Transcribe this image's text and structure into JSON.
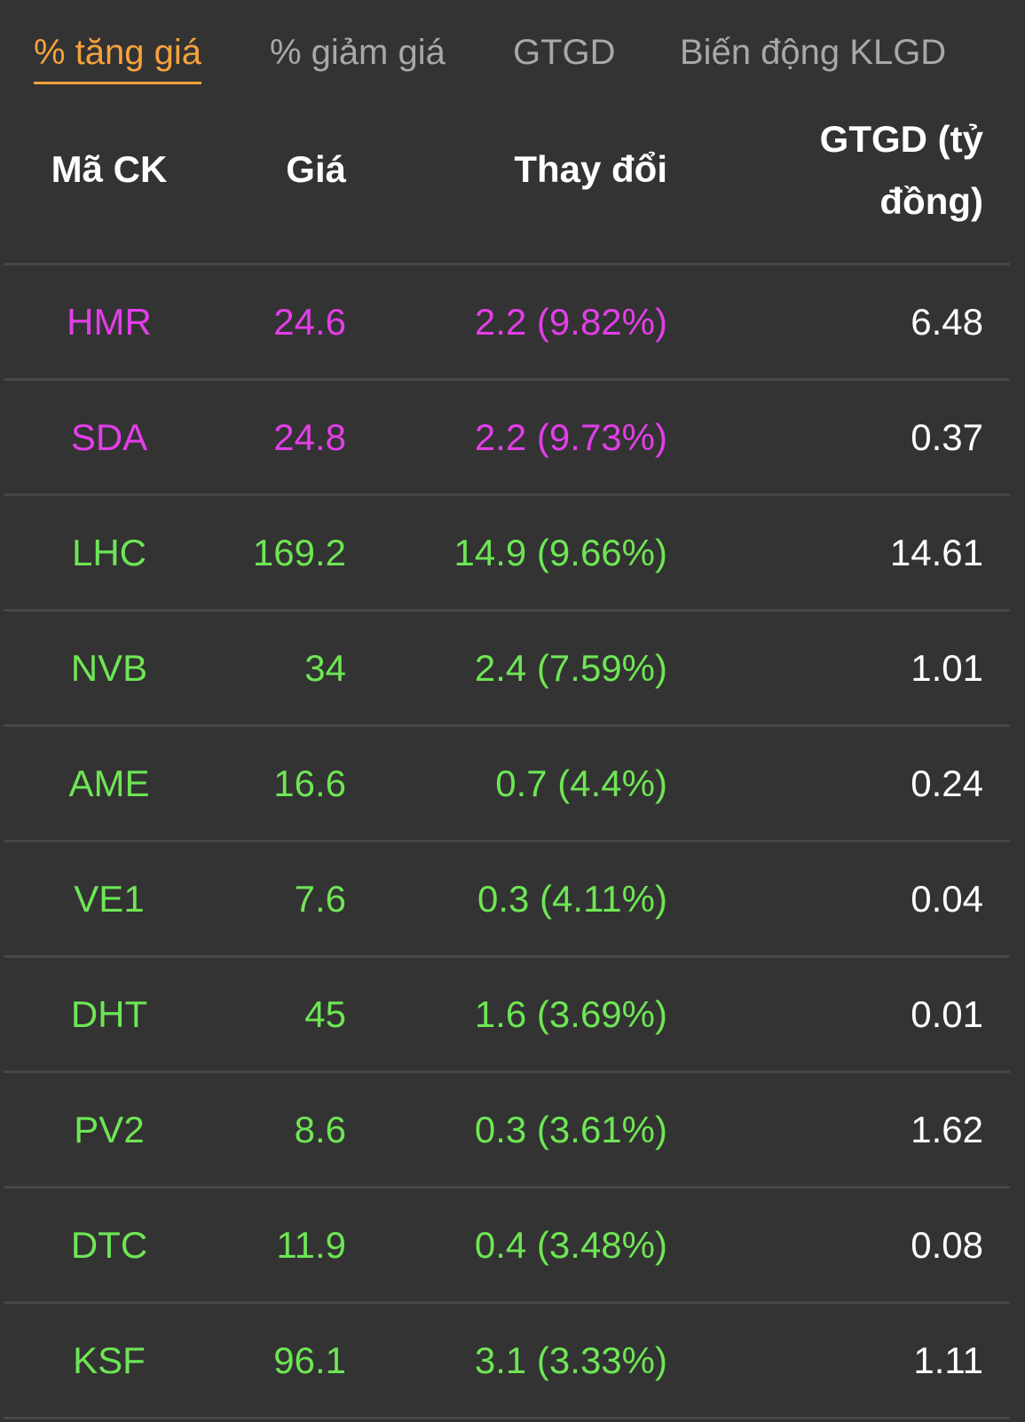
{
  "tabs": [
    {
      "label": "% tăng giá",
      "active": true
    },
    {
      "label": "% giảm giá",
      "active": false
    },
    {
      "label": "GTGD",
      "active": false
    },
    {
      "label": "Biến động KLGD",
      "active": false
    }
  ],
  "colors": {
    "background": "#333333",
    "active_tab": "#f5a23c",
    "ceiling": "#e33ee8",
    "up": "#6ee654",
    "text": "#ffffff",
    "divider": "#474747"
  },
  "table": {
    "headers": {
      "code": "Mã CK",
      "price": "Giá",
      "change": "Thay đổi",
      "value": "GTGD (tỷ đồng)"
    },
    "rows": [
      {
        "code": "HMR",
        "price": "24.6",
        "change": "2.2 (9.82%)",
        "value": "6.48",
        "status": "ceiling"
      },
      {
        "code": "SDA",
        "price": "24.8",
        "change": "2.2 (9.73%)",
        "value": "0.37",
        "status": "ceiling"
      },
      {
        "code": "LHC",
        "price": "169.2",
        "change": "14.9 (9.66%)",
        "value": "14.61",
        "status": "up"
      },
      {
        "code": "NVB",
        "price": "34",
        "change": "2.4 (7.59%)",
        "value": "1.01",
        "status": "up"
      },
      {
        "code": "AME",
        "price": "16.6",
        "change": "0.7 (4.4%)",
        "value": "0.24",
        "status": "up"
      },
      {
        "code": "VE1",
        "price": "7.6",
        "change": "0.3 (4.11%)",
        "value": "0.04",
        "status": "up"
      },
      {
        "code": "DHT",
        "price": "45",
        "change": "1.6 (3.69%)",
        "value": "0.01",
        "status": "up"
      },
      {
        "code": "PV2",
        "price": "8.6",
        "change": "0.3 (3.61%)",
        "value": "1.62",
        "status": "up"
      },
      {
        "code": "DTC",
        "price": "11.9",
        "change": "0.4 (3.48%)",
        "value": "0.08",
        "status": "up"
      },
      {
        "code": "KSF",
        "price": "96.1",
        "change": "3.1 (3.33%)",
        "value": "1.11",
        "status": "up"
      }
    ]
  }
}
